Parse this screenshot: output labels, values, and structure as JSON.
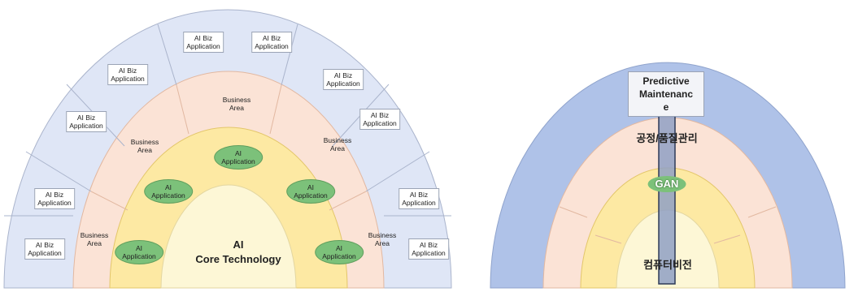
{
  "left_diagram": {
    "outer_ring": {
      "labels": [
        "AI Biz\nApplication",
        "AI Biz\nApplication",
        "AI Biz\nApplication",
        "AI Biz\nApplication",
        "AI Biz\nApplication",
        "AI Biz\nApplication",
        "AI Biz\nApplication",
        "AI Biz\nApplication",
        "AI Biz\nApplication",
        "AI Biz\nApplication"
      ]
    },
    "middle_ring": {
      "labels": [
        "Business\nArea",
        "Business\nArea",
        "Business\nArea",
        "Business\nArea",
        "Business\nArea"
      ]
    },
    "inner_ring": {
      "labels": [
        "AI\nApplication",
        "AI\nApplication",
        "AI\nApplication",
        "AI\nApplication",
        "AI\nApplication"
      ]
    },
    "core": {
      "label": "AI\nCore Technology"
    }
  },
  "right_diagram": {
    "top_label": "Predictive\nMaintenanc\ne",
    "ring_label": "공정/품질관리",
    "model_label": "GAN",
    "core_label": "컴퓨터비전"
  },
  "colors": {
    "outer_ring": "#dfe6f6",
    "middle_ring": "#fbe3d6",
    "inner_ring": "#fde9a3",
    "core": "#fdf7d6",
    "right_outer": "#afc2e8",
    "arrow": "#8fa0c4",
    "oval": "#7cc17a"
  }
}
